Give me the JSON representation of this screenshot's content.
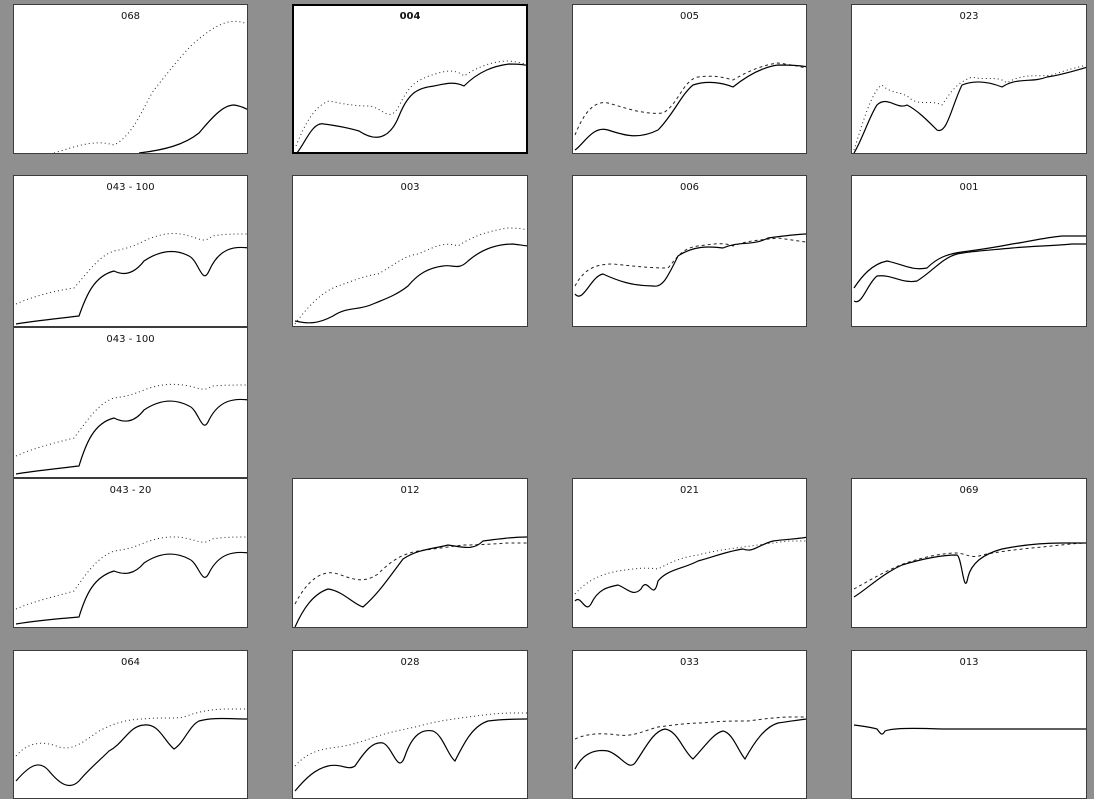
{
  "grid": {
    "background_color": "#8f8f8f",
    "panels": [
      {
        "label": "068",
        "row": 0,
        "col": 0,
        "selected": false
      },
      {
        "label": "004",
        "row": 0,
        "col": 1,
        "selected": true
      },
      {
        "label": "005",
        "row": 0,
        "col": 2,
        "selected": false
      },
      {
        "label": "023",
        "row": 0,
        "col": 3,
        "selected": false
      },
      {
        "label": "043 - 100",
        "row": 1,
        "col": 0,
        "selected": false
      },
      {
        "label": "003",
        "row": 1,
        "col": 1,
        "selected": false
      },
      {
        "label": "006",
        "row": 1,
        "col": 2,
        "selected": false
      },
      {
        "label": "001",
        "row": 1,
        "col": 3,
        "selected": false
      },
      {
        "label": "043 - 100",
        "row": 2,
        "col": 0,
        "selected": false
      },
      {
        "label": "043 - 20",
        "row": 3,
        "col": 0,
        "selected": false
      },
      {
        "label": "012",
        "row": 3,
        "col": 1,
        "selected": false
      },
      {
        "label": "021",
        "row": 3,
        "col": 2,
        "selected": false
      },
      {
        "label": "069",
        "row": 3,
        "col": 3,
        "selected": false
      },
      {
        "label": "064",
        "row": 4,
        "col": 0,
        "selected": false
      },
      {
        "label": "028",
        "row": 4,
        "col": 1,
        "selected": false
      },
      {
        "label": "033",
        "row": 4,
        "col": 2,
        "selected": false
      },
      {
        "label": "013",
        "row": 4,
        "col": 3,
        "selected": false
      }
    ]
  }
}
